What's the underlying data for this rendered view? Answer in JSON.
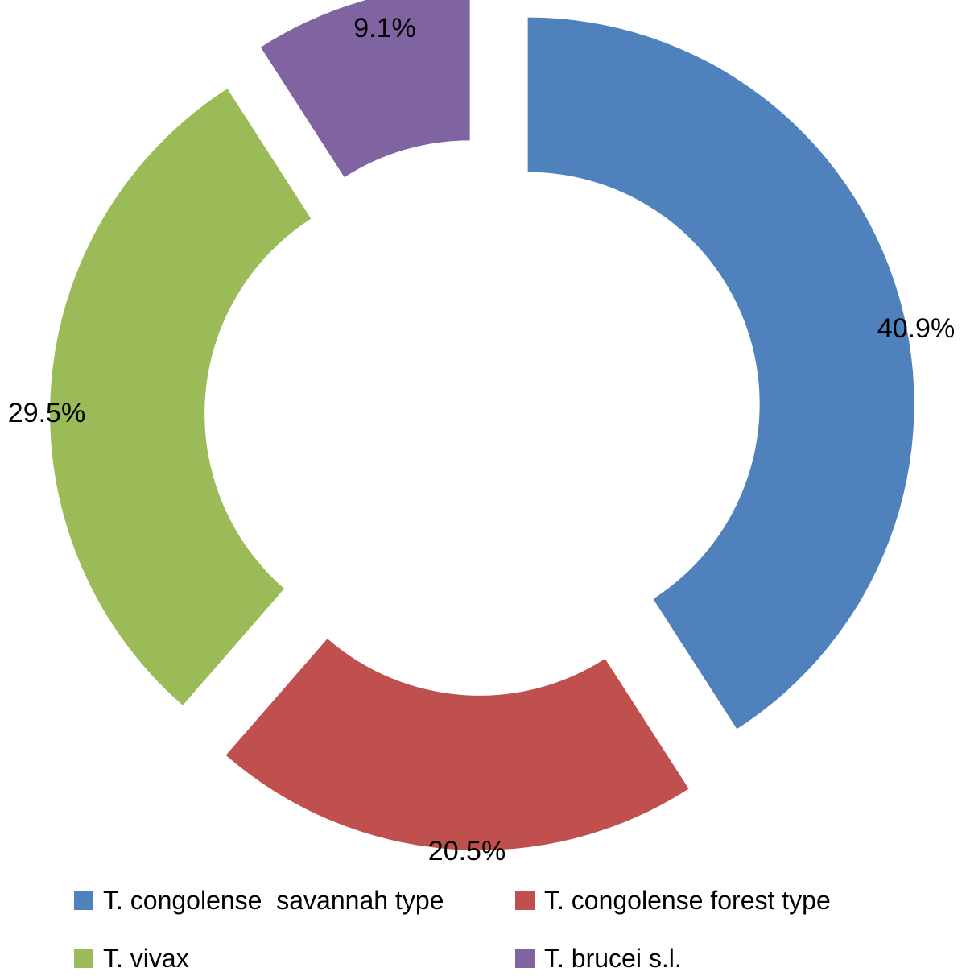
{
  "chart_data": {
    "type": "pie",
    "variant": "exploded-donut",
    "title": "",
    "legend_position": "bottom",
    "series": [
      {
        "name": "T. congolense  savannah type",
        "value": 40.9,
        "label": "40.9%",
        "color": "#4F81BD"
      },
      {
        "name": "T. congolense forest type",
        "value": 20.5,
        "label": "20.5%",
        "color": "#C0504D"
      },
      {
        "name": "T. vivax",
        "value": 29.5,
        "label": "29.5%",
        "color": "#9BBB59"
      },
      {
        "name": "T. brucei s.l.",
        "value": 9.1,
        "label": "9.1%",
        "color": "#8064A2"
      }
    ]
  }
}
